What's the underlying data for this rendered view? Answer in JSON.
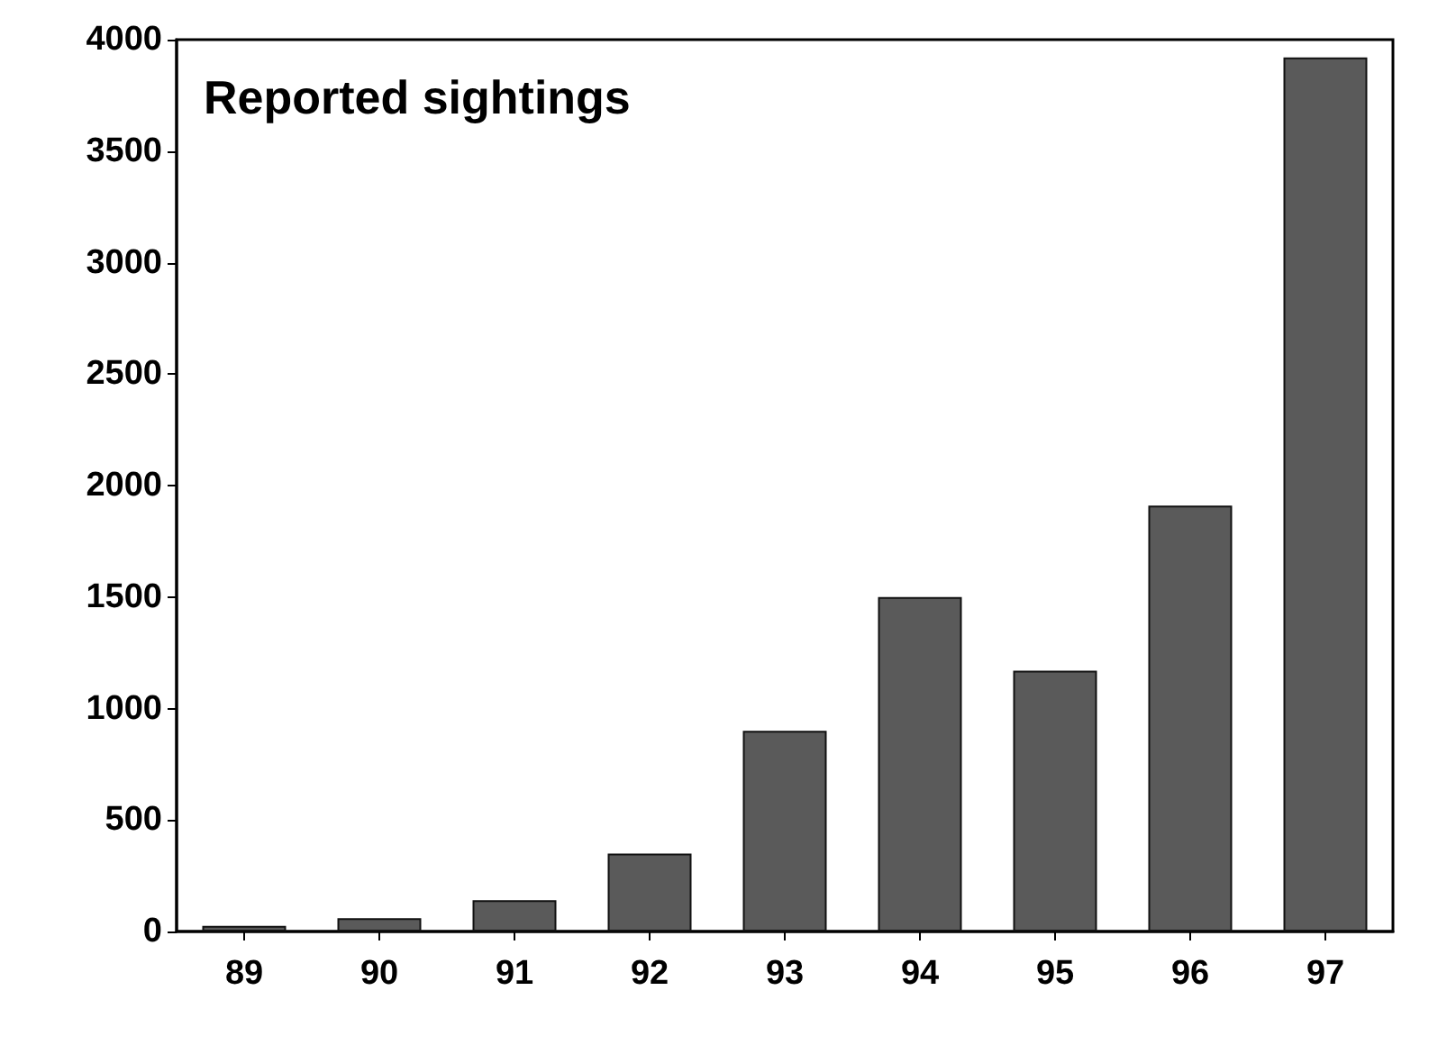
{
  "chart_data": {
    "type": "bar",
    "title": "Reported sightings",
    "categories": [
      "89",
      "90",
      "91",
      "92",
      "93",
      "94",
      "95",
      "96",
      "97"
    ],
    "values": [
      25,
      60,
      140,
      350,
      900,
      1500,
      1170,
      1910,
      3920
    ],
    "color": "#5a5a5a",
    "ylim": [
      0,
      4000
    ],
    "yticks": [
      0,
      500,
      1000,
      1500,
      2000,
      2500,
      3000,
      3500,
      4000
    ],
    "grid": false
  }
}
